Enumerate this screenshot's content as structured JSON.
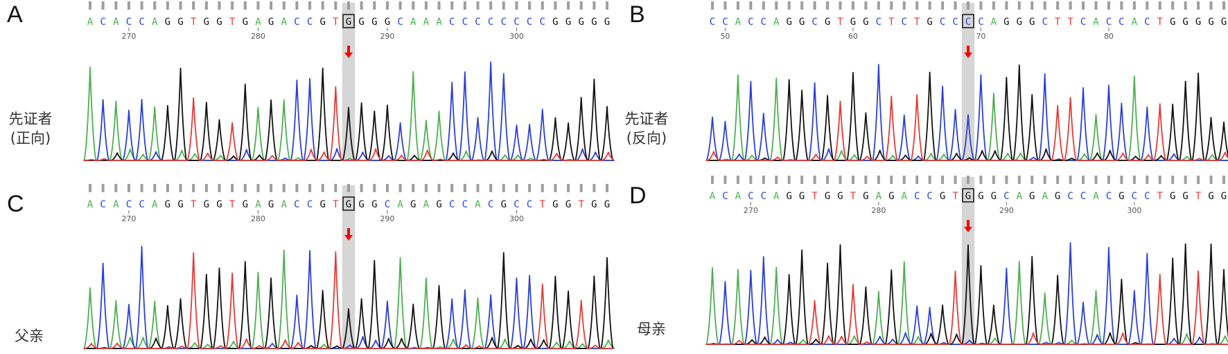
{
  "colors": {
    "A": "#4caf50",
    "C": "#2b3fd6",
    "G": "#111111",
    "T": "#e53935",
    "highlight": "#d6d6d6",
    "arrow": "#ff0000",
    "tick": "#9e9e9e"
  },
  "panels": [
    {
      "id": "A",
      "letter": "A",
      "label_lines": [
        "先证者",
        "(正向)"
      ],
      "sequence": "ACACCAGGTGGTGAGACCGTGGGGCAAACCCCCCCCGGGGG",
      "mutation_index": 20,
      "start_position": 267,
      "ruler_labels": [
        "270",
        "280",
        "290",
        "300"
      ]
    },
    {
      "id": "B",
      "letter": "B",
      "label_lines": [
        "先证者",
        "(反向)"
      ],
      "sequence": "CCACCAGGCGTGGCTCTGCCCCAGGGCTTCACCACTGGGGG",
      "mutation_index": 20,
      "start_position": 49,
      "ruler_labels": [
        "50",
        "60",
        "70",
        "80"
      ]
    },
    {
      "id": "C",
      "letter": "C",
      "label_lines": [
        "父亲"
      ],
      "sequence": "ACACCAGGTGGTGAGACCGTGGGCAGAGCCACGCCTGGTGG",
      "mutation_index": 20,
      "start_position": 267,
      "ruler_labels": [
        "270",
        "280",
        "290",
        "300"
      ]
    },
    {
      "id": "D",
      "letter": "D",
      "label_lines": [
        "母亲"
      ],
      "sequence": "ACACCAGGTGGTGAGACCGTGGGCAGAGCCACGCCTGGTGG",
      "mutation_index": 20,
      "start_position": 267,
      "ruler_labels": [
        "270",
        "280",
        "290",
        "300"
      ]
    }
  ]
}
